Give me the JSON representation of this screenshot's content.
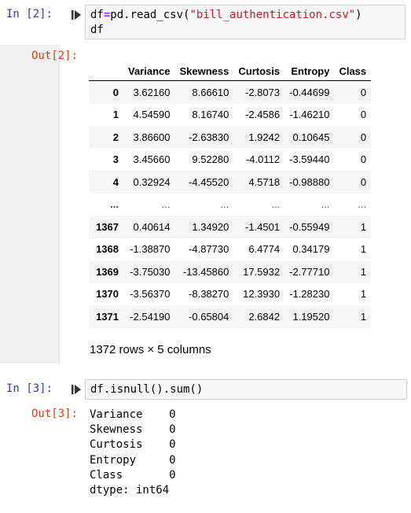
{
  "cell2": {
    "in_prompt": "In [2]:",
    "code_line1_pre": "df",
    "code_line1_op": "=",
    "code_line1_call": "pd.read_csv(",
    "code_line1_str": "\"bill_authentication.csv\"",
    "code_line1_close": ")",
    "code_line2": "df",
    "out_prompt": "Out[2]:",
    "table": {
      "columns": [
        "",
        "Variance",
        "Skewness",
        "Curtosis",
        "Entropy",
        "Class"
      ],
      "rows": [
        [
          "0",
          "3.62160",
          "8.66610",
          "-2.8073",
          "-0.44699",
          "0"
        ],
        [
          "1",
          "4.54590",
          "8.16740",
          "-2.4586",
          "-1.46210",
          "0"
        ],
        [
          "2",
          "3.86600",
          "-2.63830",
          "1.9242",
          "0.10645",
          "0"
        ],
        [
          "3",
          "3.45660",
          "9.52280",
          "-4.0112",
          "-3.59440",
          "0"
        ],
        [
          "4",
          "0.32924",
          "-4.45520",
          "4.5718",
          "-0.98880",
          "0"
        ],
        [
          "...",
          "...",
          "...",
          "...",
          "...",
          "..."
        ],
        [
          "1367",
          "0.40614",
          "1.34920",
          "-1.4501",
          "-0.55949",
          "1"
        ],
        [
          "1368",
          "-1.38870",
          "-4.87730",
          "6.4774",
          "0.34179",
          "1"
        ],
        [
          "1369",
          "-3.75030",
          "-13.45860",
          "17.5932",
          "-2.77710",
          "1"
        ],
        [
          "1370",
          "-3.56370",
          "-8.38270",
          "12.3930",
          "-1.28230",
          "1"
        ],
        [
          "1371",
          "-2.54190",
          "-0.65804",
          "2.6842",
          "1.19520",
          "1"
        ]
      ]
    },
    "shape_note": "1372 rows × 5 columns"
  },
  "cell3": {
    "in_prompt": "In [3]:",
    "code": "df.isnull().sum()",
    "out_prompt": "Out[3]:",
    "output": "Variance    0\nSkewness    0\nCurtosis    0\nEntropy     0\nClass       0\ndtype: int64"
  },
  "icons": {
    "run": "run-cell-icon"
  }
}
